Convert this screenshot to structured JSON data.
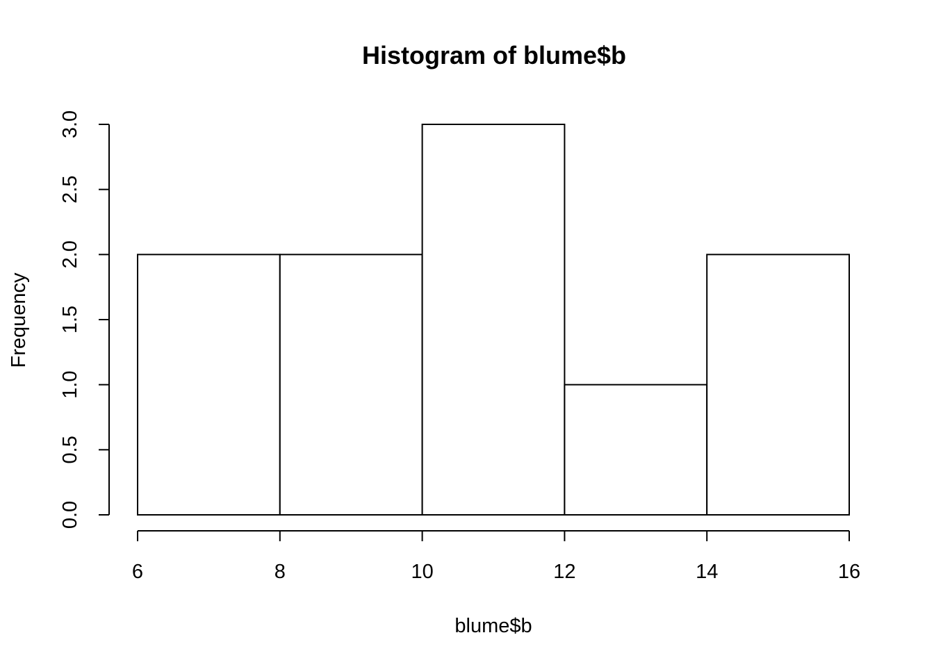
{
  "chart_data": {
    "type": "bar",
    "title": "Histogram of blume$b",
    "xlabel": "blume$b",
    "ylabel": "Frequency",
    "bin_edges": [
      6,
      8,
      10,
      12,
      14,
      16
    ],
    "values": [
      2,
      2,
      3,
      1,
      2
    ],
    "xlim": [
      6,
      16
    ],
    "ylim": [
      0,
      3
    ],
    "x_ticks": [
      "6",
      "8",
      "10",
      "12",
      "14",
      "16"
    ],
    "y_ticks": [
      "0.0",
      "0.5",
      "1.0",
      "1.5",
      "2.0",
      "2.5",
      "3.0"
    ],
    "grid": false,
    "bar_fill": "#ffffff",
    "bar_stroke": "#000000"
  }
}
